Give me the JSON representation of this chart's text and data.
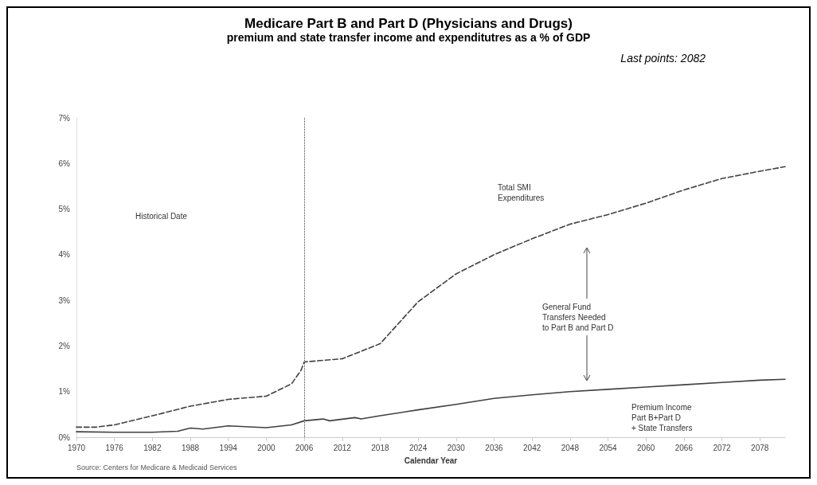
{
  "chart_data": {
    "type": "line",
    "title": "Medicare Part B and Part D (Physicians and Drugs)",
    "subtitle": "premium and state transfer income and expenditutres as a % of GDP",
    "xlabel": "Calendar Year",
    "annotations": [
      "Last points: 2082",
      "Source: Centers for Medicare & Medicaid Services",
      "Historical Date",
      "Total SMI\nExpenditures",
      "General Fund\nTransfers Needed\nto Part B and Part D",
      "Premium Income\nPart B+Part D\n+ State Transfers"
    ],
    "series": [
      {
        "color": "#404040",
        "line_style": "dashed",
        "x": [
          1970,
          1973,
          1976,
          1982,
          1988,
          1994,
          2000,
          2004,
          2005.5,
          2006,
          2012,
          2018,
          2024,
          2030,
          2036,
          2042,
          2048,
          2054,
          2060,
          2066,
          2072,
          2078,
          2082
        ],
        "values": [
          0.22,
          0.22,
          0.27,
          0.47,
          0.68,
          0.83,
          0.9,
          1.17,
          1.47,
          1.65,
          1.72,
          2.05,
          2.97,
          3.58,
          4.0,
          4.35,
          4.67,
          4.88,
          5.13,
          5.42,
          5.67,
          5.83,
          5.93
        ]
      },
      {
        "color": "#404040",
        "line_style": "solid",
        "x": [
          1970,
          1976,
          1982,
          1986,
          1988,
          1990,
          1994,
          2000,
          2004,
          2006,
          2009,
          2010,
          2014,
          2015,
          2018,
          2024,
          2030,
          2036,
          2042,
          2048,
          2054,
          2060,
          2066,
          2072,
          2078,
          2082
        ],
        "values": [
          0.12,
          0.11,
          0.11,
          0.13,
          0.2,
          0.18,
          0.25,
          0.21,
          0.27,
          0.36,
          0.4,
          0.36,
          0.43,
          0.4,
          0.47,
          0.6,
          0.72,
          0.85,
          0.93,
          1.0,
          1.05,
          1.1,
          1.15,
          1.2,
          1.25,
          1.27
        ]
      }
    ],
    "xlim": [
      1970,
      2082
    ],
    "xticks": [
      1970,
      1976,
      1982,
      1988,
      1994,
      2000,
      2006,
      2012,
      2018,
      2024,
      2030,
      2036,
      2042,
      2048,
      2054,
      2060,
      2066,
      2072,
      2078
    ],
    "ylim": [
      0,
      7
    ],
    "yticks": [
      {
        "value": 0,
        "label": "0%"
      },
      {
        "value": 1,
        "label": "1%"
      },
      {
        "value": 2,
        "label": "2%"
      },
      {
        "value": 3,
        "label": "3%"
      },
      {
        "value": 4,
        "label": "4%"
      },
      {
        "value": 5,
        "label": "5%"
      },
      {
        "value": 6,
        "label": "6%"
      },
      {
        "value": 7,
        "label": "7%"
      }
    ],
    "ref_lines": [
      {
        "axis": "x",
        "value": 2006,
        "color": "#404040",
        "line_style": "dotted"
      }
    ],
    "grid": false,
    "marker": "none"
  }
}
